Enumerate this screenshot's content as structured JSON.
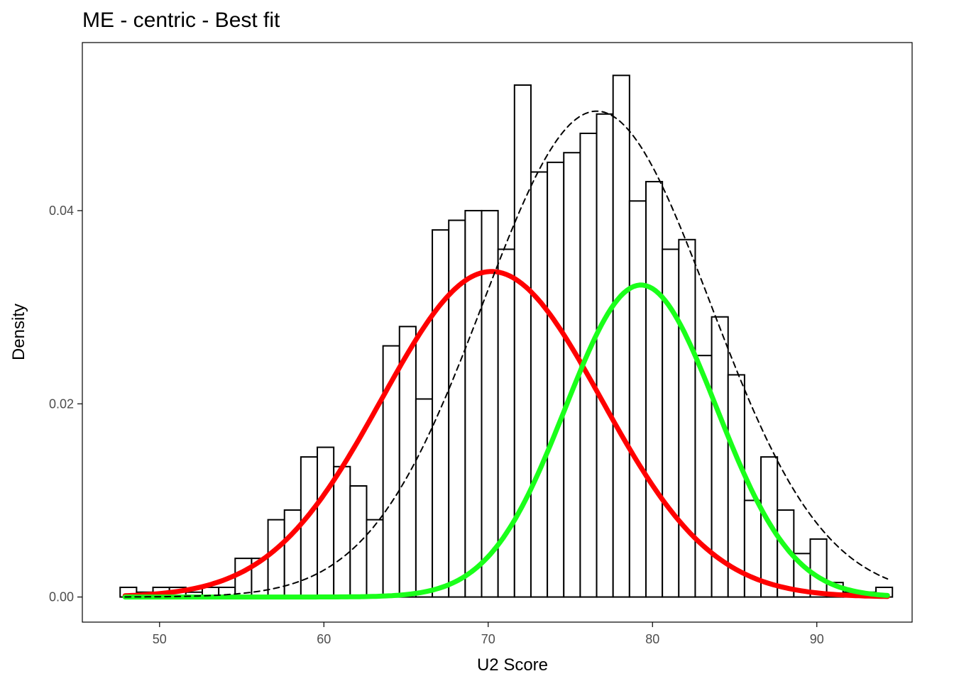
{
  "chart_data": {
    "type": "bar",
    "title": "ME -  centric  - Best fit",
    "xlabel": "U2 Score",
    "ylabel": "Density",
    "xlim": [
      45.3,
      95.8
    ],
    "ylim": [
      -0.0026,
      0.0574
    ],
    "x_ticks": [
      50,
      60,
      70,
      80,
      90
    ],
    "x_tick_labels": [
      "50",
      "60",
      "70",
      "80",
      "90"
    ],
    "y_ticks": [
      0.0,
      0.02,
      0.04
    ],
    "y_tick_labels": [
      "0.00",
      "0.02",
      "0.04"
    ],
    "grid": false,
    "histogram": {
      "bin_width": 1.0,
      "bin_starts": [
        47.6,
        48.6,
        49.6,
        50.6,
        51.6,
        52.6,
        53.6,
        54.6,
        55.6,
        56.6,
        57.6,
        58.6,
        59.6,
        60.6,
        61.6,
        62.6,
        63.6,
        64.6,
        65.6,
        66.6,
        67.6,
        68.6,
        69.6,
        70.6,
        71.6,
        72.6,
        73.6,
        74.6,
        75.6,
        76.6,
        77.6,
        78.6,
        79.6,
        80.6,
        81.6,
        82.6,
        83.6,
        84.6,
        85.6,
        86.6,
        87.6,
        88.6,
        89.6,
        90.6,
        91.6,
        92.6,
        93.6
      ],
      "density": [
        0.001,
        0.0005,
        0.001,
        0.001,
        0.0005,
        0.001,
        0.001,
        0.004,
        0.004,
        0.008,
        0.009,
        0.0145,
        0.0155,
        0.0135,
        0.0115,
        0.008,
        0.026,
        0.028,
        0.0205,
        0.038,
        0.039,
        0.04,
        0.04,
        0.036,
        0.053,
        0.044,
        0.045,
        0.046,
        0.048,
        0.05,
        0.054,
        0.041,
        0.043,
        0.036,
        0.037,
        0.025,
        0.029,
        0.023,
        0.01,
        0.0145,
        0.009,
        0.0045,
        0.006,
        0.0015,
        0.0005,
        0.0005,
        0.001
      ]
    },
    "series": [
      {
        "kind": "mixture-density",
        "mean": 76.6,
        "sd": 6.9,
        "peak": 0.0503,
        "color": "#000000",
        "dash": true
      },
      {
        "kind": "component-density",
        "mean": 70.2,
        "sd": 6.7,
        "peak": 0.0337,
        "color": "#ff0000"
      },
      {
        "kind": "component-density",
        "mean": 79.3,
        "sd": 4.6,
        "peak": 0.0323,
        "color": "#1aff1a"
      }
    ],
    "curve_x_range": [
      47.9,
      94.3
    ]
  }
}
